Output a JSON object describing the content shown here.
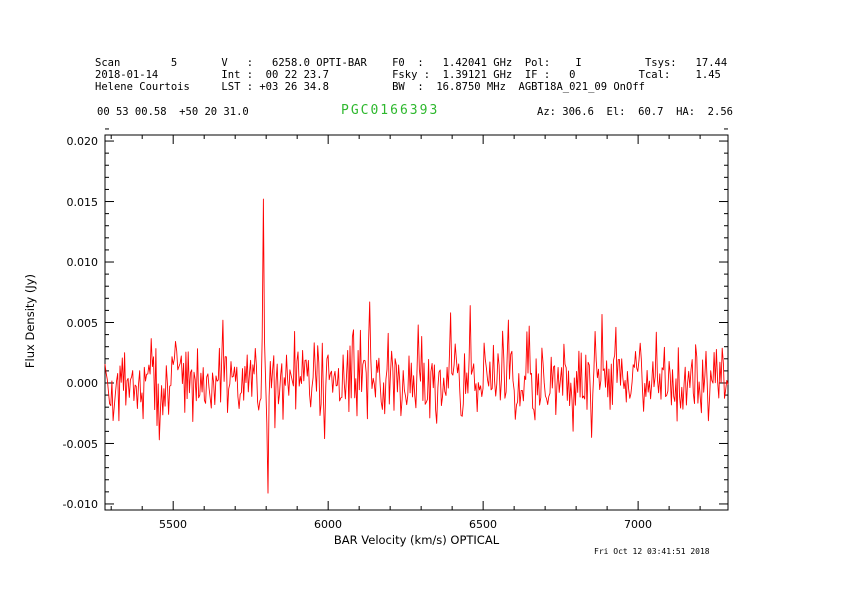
{
  "header": {
    "line1": "Scan        5       V   :   6258.0 OPTI-BAR    F0  :   1.42041 GHz  Pol:    I          Tsys:   17.44",
    "line2": "2018-01-14          Int :  00 22 23.7          Fsky :  1.39121 GHz  IF :   0          Tcal:    1.45",
    "line3": "Helene Courtois     LST : +03 26 34.8          BW  :  16.8750 MHz  AGBT18A_021_09 OnOff",
    "coords": "00 53 00.58  +50 20 31.0",
    "source": "PGC0166393",
    "pointing": "Az: 306.6  El:  60.7  HA:  2.56"
  },
  "footer": {
    "timestamp": "Fri Oct 12 03:41:51 2018"
  },
  "chart_data": {
    "type": "line",
    "title": "PGC0166393",
    "xlabel": "BAR Velocity (km/s) OPTICAL",
    "ylabel": "Flux Density (Jy)",
    "xlim": [
      5280,
      7290
    ],
    "ylim": [
      -0.0105,
      0.0205
    ],
    "x_ticks": [
      5500,
      6000,
      6500,
      7000
    ],
    "x_tick_labels": [
      "5500",
      "6000",
      "6500",
      "7000"
    ],
    "x_minor_step": 100,
    "y_ticks": [
      0.02,
      0.015,
      0.01,
      0.005,
      0.0,
      -0.005,
      -0.01
    ],
    "y_tick_labels": [
      "0.020",
      "0.015",
      "0.010",
      "0.005",
      "0.000",
      "-0.005",
      "-0.010"
    ],
    "y_minor_step": 0.001,
    "grid": false,
    "legend": null,
    "line_color": "#ff0000",
    "frame_color": "#000000",
    "title_color": "#2eb82e",
    "series_description": "Noisy baseline-subtracted HI spectrum, mean ~0.000 Jy, rms ~0.0017 Jy",
    "noise": {
      "baseline": 0.0002,
      "rms": 0.0016,
      "n_points": 540,
      "seed": 42
    },
    "features": [
      {
        "x": 5455,
        "y": -0.0047,
        "label": "negative noise dip"
      },
      {
        "x": 5790,
        "y": 0.0152,
        "label": "narrow spike (max)"
      },
      {
        "x": 5806,
        "y": -0.0091,
        "label": "narrow dip (min)"
      },
      {
        "x": 5990,
        "y": -0.0046,
        "label": "negative noise dip"
      },
      {
        "x": 6135,
        "y": 0.0067,
        "label": "noise spike"
      },
      {
        "x": 6290,
        "y": 0.0048,
        "label": "noise spike"
      },
      {
        "x": 6395,
        "y": 0.0058,
        "label": "noise spike"
      },
      {
        "x": 6460,
        "y": 0.0064,
        "label": "noise spike"
      },
      {
        "x": 6580,
        "y": 0.0052,
        "label": "noise spike"
      },
      {
        "x": 6650,
        "y": 0.0047,
        "label": "noise spike"
      },
      {
        "x": 6850,
        "y": -0.0045,
        "label": "negative noise dip"
      },
      {
        "x": 7060,
        "y": 0.0042,
        "label": "noise spike"
      }
    ]
  }
}
